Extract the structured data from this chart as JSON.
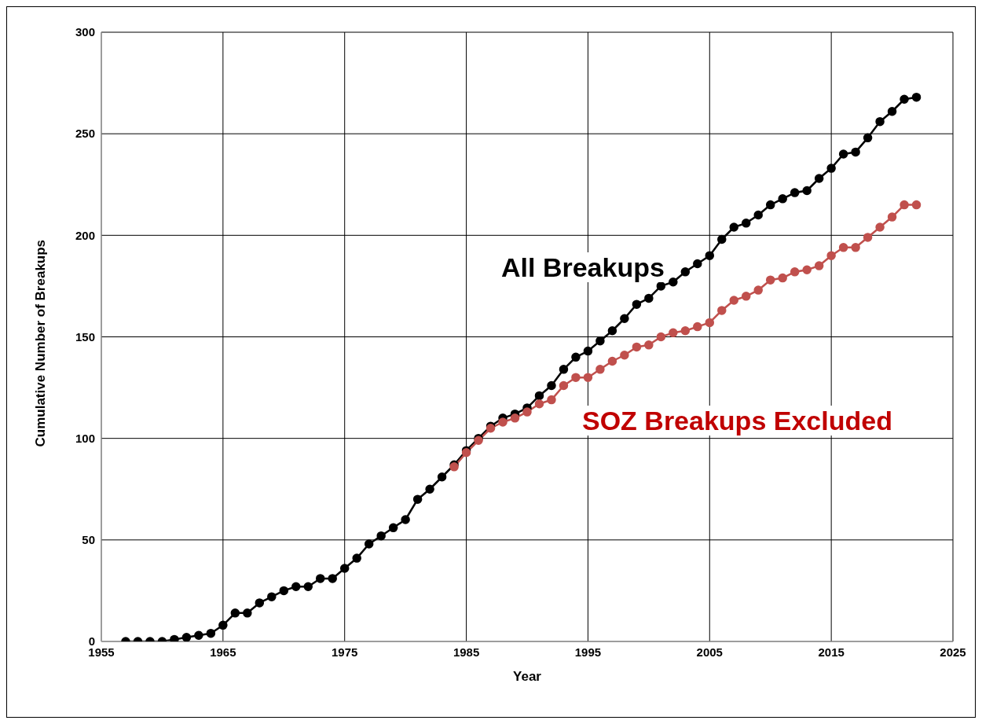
{
  "chart_data": {
    "type": "line",
    "xlabel": "Year",
    "ylabel": "Cumulative Number of Breakups",
    "x": [
      1957,
      1958,
      1959,
      1960,
      1961,
      1962,
      1963,
      1964,
      1965,
      1966,
      1967,
      1968,
      1969,
      1970,
      1971,
      1972,
      1973,
      1974,
      1975,
      1976,
      1977,
      1978,
      1979,
      1980,
      1981,
      1982,
      1983,
      1984,
      1985,
      1986,
      1987,
      1988,
      1989,
      1990,
      1991,
      1992,
      1993,
      1994,
      1995,
      1996,
      1997,
      1998,
      1999,
      2000,
      2001,
      2002,
      2003,
      2004,
      2005,
      2006,
      2007,
      2008,
      2009,
      2010,
      2011,
      2012,
      2013,
      2014,
      2015,
      2016,
      2017,
      2018,
      2019,
      2020,
      2021,
      2022
    ],
    "series": [
      {
        "name": "All Breakups",
        "color": "#000000",
        "values": [
          0,
          0,
          0,
          0,
          1,
          2,
          3,
          4,
          8,
          14,
          14,
          19,
          22,
          25,
          27,
          27,
          31,
          31,
          36,
          41,
          48,
          52,
          56,
          60,
          70,
          75,
          81,
          87,
          94,
          100,
          106,
          110,
          112,
          115,
          121,
          126,
          134,
          140,
          143,
          148,
          153,
          159,
          166,
          169,
          175,
          177,
          182,
          186,
          190,
          198,
          204,
          206,
          210,
          215,
          218,
          221,
          222,
          228,
          233,
          240,
          241,
          248,
          256,
          261,
          267,
          268
        ]
      },
      {
        "name": "SOZ Breakups Excluded",
        "color": "#c0504d",
        "values": [
          null,
          null,
          null,
          null,
          null,
          null,
          null,
          null,
          null,
          null,
          null,
          null,
          null,
          null,
          null,
          null,
          null,
          null,
          null,
          null,
          null,
          null,
          null,
          null,
          null,
          null,
          null,
          86,
          93,
          99,
          105,
          108,
          110,
          113,
          117,
          119,
          126,
          130,
          130,
          134,
          138,
          141,
          145,
          146,
          150,
          152,
          153,
          155,
          157,
          163,
          168,
          170,
          173,
          178,
          179,
          182,
          183,
          185,
          190,
          194,
          194,
          199,
          204,
          209,
          215,
          215
        ]
      }
    ],
    "xlim": [
      1955,
      2025
    ],
    "xticks": [
      1955,
      1965,
      1975,
      1985,
      1995,
      2005,
      2015,
      2025
    ],
    "ylim": [
      0,
      300
    ],
    "yticks": [
      0,
      50,
      100,
      150,
      200,
      250,
      300
    ],
    "grid": true,
    "marker": "circle",
    "line_style": "solid"
  }
}
